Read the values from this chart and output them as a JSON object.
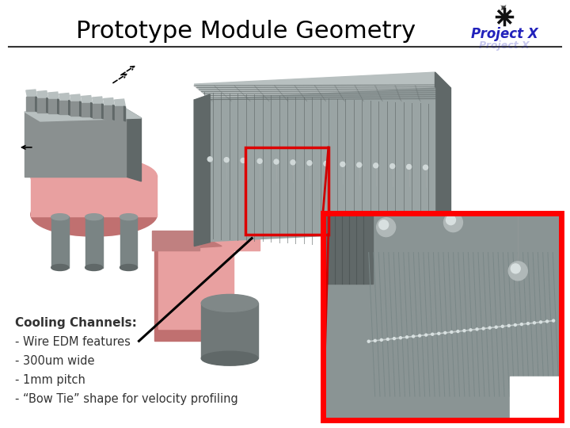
{
  "title": "Prototype Module Geometry",
  "bg_color": "#ffffff",
  "title_color": "#000000",
  "title_fontsize": 22,
  "projectx_color": "#2222bb",
  "cooling_text_lines": [
    "Cooling Channels:",
    "- Wire EDM features",
    "- 300um wide",
    "- 1mm pitch",
    "- “Bow Tie” shape for velocity profiling"
  ],
  "cooling_text_color": "#333333",
  "cooling_text_fontsize": 10.5,
  "pink_color": "#e8a0a0",
  "pink_dark": "#c07070",
  "gray_light": "#b8c0c0",
  "gray_mid": "#8a9090",
  "gray_dark": "#606868",
  "gray_module": "#9aa4a4",
  "zoom_box_color": "#ff0000",
  "zoom_bg": "#8a9494",
  "zoom_channel": "#7a8888",
  "zoom_drop": "#c8d0d0"
}
